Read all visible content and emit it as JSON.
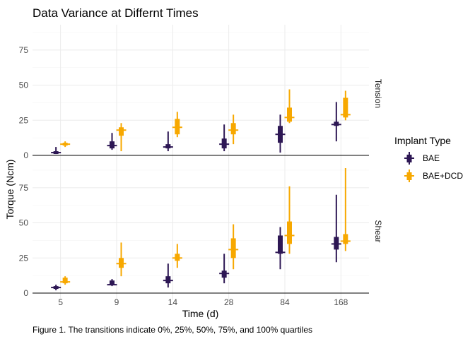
{
  "title": "Data Variance at Differnt Times",
  "caption": "Figure 1. The transitions indicate 0%, 25%, 50%, 75%, and 100% quartiles",
  "chart_data": {
    "type": "box",
    "title": "Data Variance at Differnt Times",
    "xlabel": "Time (d)",
    "ylabel": "Torque (Ncm)",
    "categories": [
      "5",
      "9",
      "14",
      "28",
      "84",
      "168"
    ],
    "ylim": [
      -5,
      93
    ],
    "yticks": [
      0,
      25,
      50,
      75
    ],
    "grid": true,
    "legend_position": "right",
    "legend_title": "Implant Type",
    "series": [
      {
        "name": "BAE",
        "color": "#2d1754"
      },
      {
        "name": "BAE+DCD",
        "color": "#f7a800"
      }
    ],
    "panels": [
      {
        "label": "Tension",
        "stats": {
          "BAE": [
            [
              1,
              1,
              2,
              3,
              6
            ],
            [
              4,
              5,
              7,
              10,
              16
            ],
            [
              3,
              5,
              6,
              8,
              17
            ],
            [
              3,
              5,
              8,
              12,
              22
            ],
            [
              2,
              9,
              15,
              21,
              29
            ],
            [
              10,
              21,
              22,
              24,
              38
            ]
          ],
          "BAE+DCD": [
            [
              6,
              7,
              8,
              9,
              10
            ],
            [
              3,
              14,
              18,
              20,
              23
            ],
            [
              13,
              15,
              20,
              26,
              31
            ],
            [
              8,
              15,
              18,
              23,
              29
            ],
            [
              23,
              24,
              27,
              34,
              47
            ],
            [
              25,
              27,
              29,
              41,
              46
            ]
          ]
        }
      },
      {
        "label": "Shear",
        "stats": {
          "BAE": [
            [
              2,
              3,
              4,
              5,
              6
            ],
            [
              5,
              6,
              6,
              9,
              10
            ],
            [
              4,
              7,
              9,
              12,
              21
            ],
            [
              7,
              11,
              14,
              16,
              28
            ],
            [
              17,
              28,
              29,
              41,
              47
            ],
            [
              22,
              31,
              35,
              40,
              70
            ]
          ],
          "BAE+DCD": [
            [
              6,
              7,
              8,
              11,
              12
            ],
            [
              12,
              18,
              21,
              25,
              36
            ],
            [
              18,
              23,
              25,
              28,
              35
            ],
            [
              17,
              25,
              31,
              39,
              49
            ],
            [
              28,
              35,
              41,
              51,
              76
            ],
            [
              30,
              35,
              37,
              42,
              89
            ]
          ]
        }
      }
    ]
  }
}
